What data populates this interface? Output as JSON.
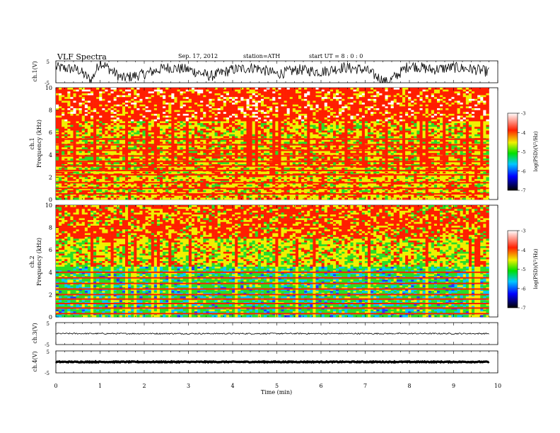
{
  "header": {
    "title": "VLF Spectra",
    "date": "Sep. 17, 2012",
    "station": "station=ATH",
    "start_ut": "start UT = 8 : 0 : 0"
  },
  "x_axis": {
    "label": "Time (min)",
    "range": [
      0,
      10
    ],
    "ticks": [
      "0",
      "1",
      "2",
      "3",
      "4",
      "5",
      "6",
      "7",
      "8",
      "9",
      "10"
    ]
  },
  "colors": {
    "trace": "#000000",
    "spec_red": "#ff1e00",
    "spec_yellow": "#f0f000",
    "spec_green": "#28dc28",
    "spec_cyan": "#00c8ff",
    "spec_blue": "#1e3cff",
    "spec_white": "#ffffff"
  },
  "chart_data": [
    {
      "type": "line",
      "name": "ch1-waveform",
      "ylabel": "ch.1(V)",
      "ylim": [
        -5,
        5
      ],
      "yticks": [
        "5",
        "-5"
      ],
      "x": [
        0,
        0.5,
        0.8,
        1.0,
        1.5,
        2.0,
        2.5,
        3.0,
        3.5,
        4.0,
        4.5,
        5.0,
        5.5,
        6.0,
        6.5,
        7.0,
        7.5,
        8.0,
        8.5,
        9.0,
        9.5,
        9.8
      ],
      "y": [
        2.0,
        1.0,
        -4.0,
        4.5,
        -3.0,
        -1.0,
        2.0,
        1.0,
        -2.0,
        1.0,
        2.0,
        -1.0,
        1.0,
        0.0,
        2.0,
        1.0,
        -5.0,
        3.0,
        1.0,
        2.0,
        1.0,
        0.0
      ]
    },
    {
      "type": "heatmap",
      "name": "ch1-spectrogram",
      "ylabel": "ch.1\nFrequency (kHz)",
      "ylabel_line1": "ch.1",
      "ylabel_line2": "Frequency (kHz)",
      "ylim": [
        0,
        10
      ],
      "yticks": [
        "0",
        "2",
        "4",
        "6",
        "8",
        "10"
      ],
      "xlim": [
        0,
        9.8
      ],
      "frequency_bands_khz": [
        0.5,
        1.0,
        1.5,
        2.2,
        2.6,
        3.0,
        3.4,
        3.9,
        4.4,
        4.9,
        5.4
      ],
      "colorbar": {
        "label": "log(PSD)(V²/Hz)",
        "range": [
          -7,
          -3
        ],
        "ticks": [
          "-3",
          "-4",
          "-5",
          "-6",
          "-7"
        ]
      }
    },
    {
      "type": "heatmap",
      "name": "ch2-spectrogram",
      "ylabel": "ch.2\nFrequency (kHz)",
      "ylabel_line1": "ch.2",
      "ylabel_line2": "Frequency (kHz)",
      "ylim": [
        0,
        10
      ],
      "yticks": [
        "0",
        "2",
        "4",
        "6",
        "8",
        "10"
      ],
      "xlim": [
        0,
        9.8
      ],
      "frequency_bands_khz": [
        0.3,
        0.8,
        1.2,
        1.6,
        2.0,
        2.5,
        3.0,
        3.5,
        4.0
      ],
      "colorbar": {
        "label": "log(PSD)(V²/Hz)",
        "range": [
          -7,
          -3
        ],
        "ticks": [
          "-3",
          "-4",
          "-5",
          "-6",
          "-7"
        ]
      }
    },
    {
      "type": "line",
      "name": "ch3-waveform",
      "ylabel": "ch.3(V)",
      "ylim": [
        -5,
        5
      ],
      "yticks": [
        "5",
        "-5"
      ],
      "x": [
        0,
        9.8
      ],
      "y": [
        0,
        0
      ]
    },
    {
      "type": "line",
      "name": "ch4-waveform",
      "ylabel": "ch.4(V)",
      "ylim": [
        -5,
        5
      ],
      "yticks": [
        "5",
        "-5"
      ],
      "x": [
        0,
        9.8
      ],
      "y": [
        0,
        0
      ]
    }
  ]
}
